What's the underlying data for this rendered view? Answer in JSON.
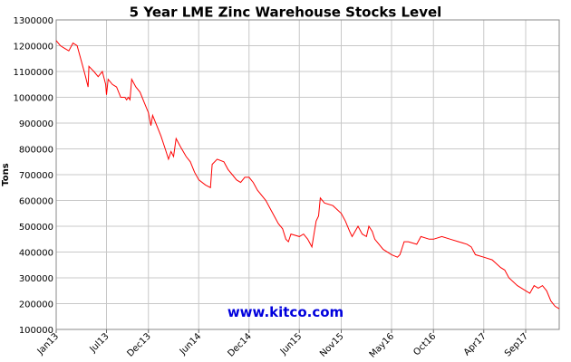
{
  "chart_data": {
    "type": "line",
    "title": "5 Year LME Zinc Warehouse Stocks Level",
    "y_label": "Tons",
    "annotation": "www.kitco.com",
    "xlim": [
      0,
      60
    ],
    "ylim": [
      100000,
      1300000
    ],
    "xticks": [
      {
        "value": 0,
        "label": "Jan13"
      },
      {
        "value": 6,
        "label": "Jul13"
      },
      {
        "value": 11,
        "label": "Dec13"
      },
      {
        "value": 17,
        "label": "Jun14"
      },
      {
        "value": 23,
        "label": "Dec14"
      },
      {
        "value": 29,
        "label": "Jun15"
      },
      {
        "value": 34,
        "label": "Nov15"
      },
      {
        "value": 40,
        "label": "May16"
      },
      {
        "value": 45,
        "label": "Oct16"
      },
      {
        "value": 51,
        "label": "Apr17"
      },
      {
        "value": 56,
        "label": "Sep17"
      }
    ],
    "yticks": [
      100000,
      200000,
      300000,
      400000,
      500000,
      600000,
      700000,
      800000,
      900000,
      1000000,
      1100000,
      1200000,
      1300000
    ],
    "grid": true,
    "series": [
      {
        "name": "LME Zinc Warehouse Stocks",
        "color": "#ff0000",
        "x": [
          0,
          0.5,
          1,
          1.5,
          2,
          2.5,
          3,
          3.5,
          3.8,
          3.9,
          4.5,
          5,
          5.5,
          5.9,
          6,
          6.2,
          6.7,
          7.2,
          7.7,
          8.2,
          8.4,
          8.6,
          8.8,
          9,
          9.5,
          10,
          10.5,
          11,
          11.3,
          11.5,
          12,
          12.5,
          13,
          13.4,
          13.7,
          14,
          14.3,
          14.8,
          15.5,
          16,
          16.5,
          17,
          17.8,
          18.4,
          18.6,
          19.2,
          20,
          20.5,
          21,
          21.5,
          22,
          22.5,
          23,
          23.5,
          24,
          25,
          25.5,
          26,
          26.5,
          27,
          27.4,
          27.7,
          28,
          29,
          29.5,
          30,
          30.5,
          31,
          31.3,
          31.5,
          32,
          33,
          34,
          34.5,
          35,
          35.3,
          36,
          36.5,
          37,
          37.3,
          37.7,
          38,
          39,
          40,
          40.7,
          41,
          41.5,
          42,
          43,
          43.5,
          44.5,
          45,
          46,
          47,
          48,
          49,
          49.5,
          50,
          51,
          52,
          53,
          53.5,
          54,
          55,
          56,
          56.5,
          57,
          57.5,
          58,
          58.5,
          59,
          59.5,
          60
        ],
        "values": [
          1220000,
          1200000,
          1190000,
          1180000,
          1210000,
          1200000,
          1140000,
          1080000,
          1040000,
          1120000,
          1100000,
          1080000,
          1100000,
          1050000,
          1010000,
          1070000,
          1050000,
          1040000,
          1000000,
          1000000,
          990000,
          1000000,
          990000,
          1070000,
          1040000,
          1020000,
          980000,
          940000,
          890000,
          930000,
          890000,
          850000,
          800000,
          760000,
          790000,
          770000,
          840000,
          810000,
          770000,
          750000,
          710000,
          680000,
          660000,
          650000,
          740000,
          760000,
          750000,
          720000,
          700000,
          680000,
          670000,
          690000,
          690000,
          670000,
          640000,
          600000,
          570000,
          540000,
          510000,
          490000,
          450000,
          440000,
          470000,
          460000,
          470000,
          450000,
          420000,
          520000,
          540000,
          610000,
          590000,
          580000,
          550000,
          520000,
          480000,
          460000,
          500000,
          470000,
          460000,
          500000,
          480000,
          450000,
          410000,
          390000,
          380000,
          390000,
          440000,
          440000,
          430000,
          460000,
          450000,
          450000,
          460000,
          450000,
          440000,
          430000,
          420000,
          390000,
          380000,
          370000,
          340000,
          330000,
          300000,
          270000,
          250000,
          240000,
          270000,
          260000,
          270000,
          250000,
          210000,
          190000,
          180000
        ]
      }
    ]
  }
}
